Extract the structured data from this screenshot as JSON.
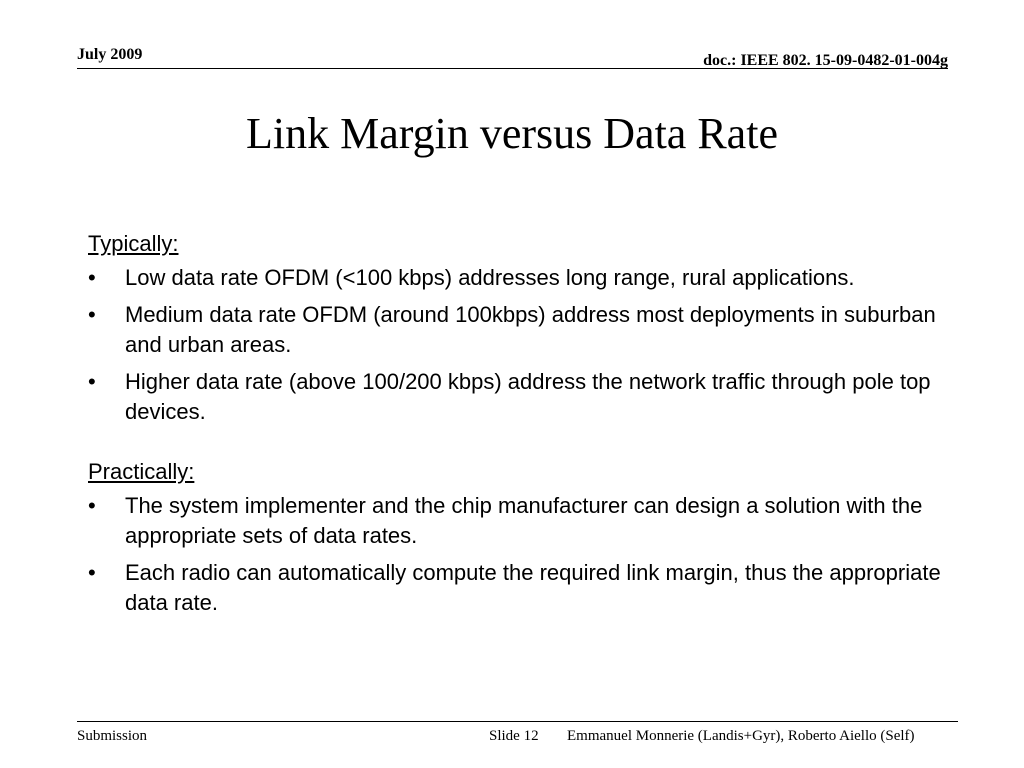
{
  "header": {
    "date": "July 2009",
    "doc_id": "doc.: IEEE 802. 15-09-0482-01-004g"
  },
  "title": "Link Margin versus Data Rate",
  "sections": [
    {
      "heading": "Typically:",
      "bullets": [
        "Low data rate OFDM (<100 kbps) addresses long range, rural applications.",
        "Medium data rate OFDM (around 100kbps) address most deployments in suburban and urban areas.",
        "Higher data rate  (above 100/200 kbps) address the network traffic through pole top devices."
      ]
    },
    {
      "heading": "Practically:",
      "bullets": [
        "The system implementer and the chip manufacturer can design a solution with the appropriate sets of data rates.",
        "Each radio can automatically compute the required link margin, thus the appropriate data rate."
      ]
    }
  ],
  "bullet_glyph": "•",
  "footer": {
    "left": "Submission",
    "slide": "Slide 12",
    "authors": "Emmanuel Monnerie (Landis+Gyr), Roberto Aiello (Self)"
  }
}
